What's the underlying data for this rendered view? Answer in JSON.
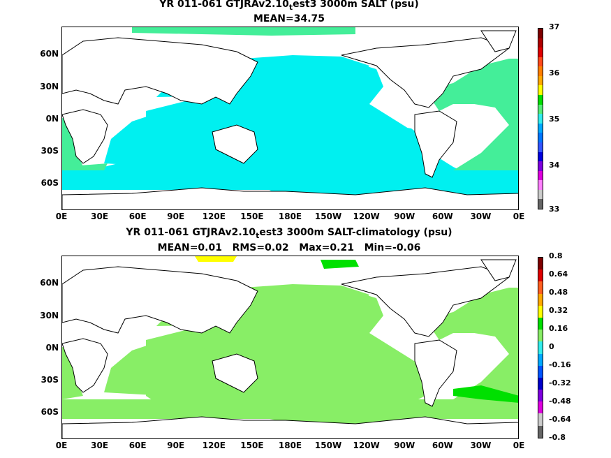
{
  "panels": [
    {
      "title_a": "YR 011-061 GTJRAv2.10",
      "title_sub": "t",
      "title_b": "est3 3000m SALT (psu)",
      "stats": "MEAN=34.75",
      "lat_labels": [
        "60N",
        "30N",
        "0N",
        "30S",
        "60S"
      ],
      "lon_labels": [
        "0E",
        "30E",
        "60E",
        "90E",
        "120E",
        "150E",
        "180E",
        "150W",
        "120W",
        "90W",
        "60W",
        "30W",
        "0E"
      ],
      "colorbar_labels": [
        "37",
        "36",
        "35",
        "34",
        "33"
      ],
      "colorbar_colors": [
        "#7f0000",
        "#b00000",
        "#e00000",
        "#ff4a1c",
        "#ff7f00",
        "#ffaa00",
        "#ffff00",
        "#00e000",
        "#55ee77",
        "#33eeee",
        "#00aaff",
        "#0077ff",
        "#3355ff",
        "#0000e0",
        "#7f00e0",
        "#e000e0",
        "#ff80ff",
        "#cccccc",
        "#666666"
      ],
      "ocean_color": "#00f0f0",
      "secondary_color": "#44ee99"
    },
    {
      "title_a": "YR 011-061 GTJRAv2.10",
      "title_sub": "t",
      "title_b": "est3 3000m SALT-climatology (psu)",
      "stats": "MEAN=0.01   RMS=0.02   Max=0.21   Min=-0.06",
      "lat_labels": [
        "60N",
        "30N",
        "0N",
        "30S",
        "60S"
      ],
      "lon_labels": [
        "0E",
        "30E",
        "60E",
        "90E",
        "120E",
        "150E",
        "180E",
        "150W",
        "120W",
        "90W",
        "60W",
        "30W",
        "0E"
      ],
      "colorbar_labels": [
        "0.8",
        "0.64",
        "0.48",
        "0.32",
        "0.16",
        "0",
        "-0.16",
        "-0.32",
        "-0.48",
        "-0.64",
        "-0.8"
      ],
      "colorbar_colors": [
        "#7f0000",
        "#e00000",
        "#ff6020",
        "#ffaa00",
        "#ffff00",
        "#00e000",
        "#88ee66",
        "#33eeee",
        "#00aaff",
        "#0055ff",
        "#0000cc",
        "#7f00e0",
        "#e000e0",
        "#cccccc",
        "#666666"
      ],
      "ocean_color": "#88ee66",
      "secondary_color": "#00e000"
    }
  ]
}
